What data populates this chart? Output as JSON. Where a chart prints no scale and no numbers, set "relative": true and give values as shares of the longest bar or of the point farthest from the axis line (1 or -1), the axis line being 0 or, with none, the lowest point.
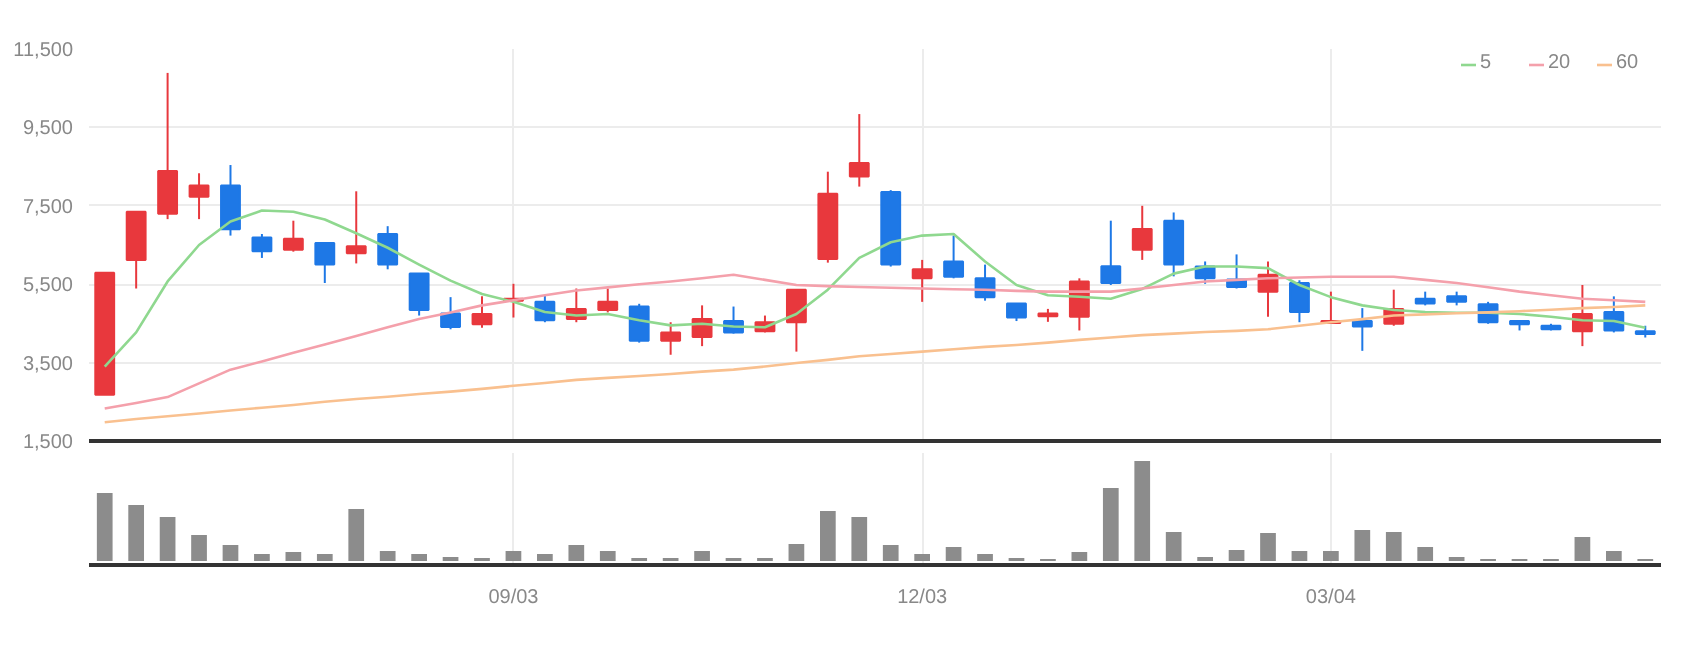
{
  "chart_data": [
    {
      "type": "candlestick",
      "categories": [
        null,
        null,
        null,
        null,
        null,
        null,
        null,
        null,
        null,
        null,
        null,
        null,
        null,
        null,
        null,
        null,
        null,
        null,
        null,
        null,
        null,
        null,
        null,
        null,
        null,
        null,
        null,
        null,
        null,
        null,
        null,
        null,
        null,
        null,
        null,
        null,
        null,
        null,
        null,
        null,
        null,
        null,
        null,
        null,
        null,
        null,
        null,
        null,
        null,
        null
      ],
      "ohlc": [
        [
          2680,
          5800,
          2680,
          5790
        ],
        [
          6120,
          7350,
          5390,
          7350
        ],
        [
          7295,
          10890,
          7160,
          8385
        ],
        [
          7730,
          8330,
          7160,
          8020
        ],
        [
          8020,
          8540,
          6740,
          6900
        ],
        [
          6690,
          6780,
          6170,
          6340
        ],
        [
          6380,
          7120,
          6330,
          6660
        ],
        [
          6550,
          6550,
          5530,
          6000
        ],
        [
          6290,
          7870,
          6030,
          6470
        ],
        [
          6780,
          6980,
          5880,
          6000
        ],
        [
          5770,
          5770,
          4700,
          4840
        ],
        [
          4750,
          5170,
          4350,
          4410
        ],
        [
          4480,
          5190,
          4390,
          4740
        ],
        [
          5080,
          5510,
          4650,
          5130
        ],
        [
          5050,
          5220,
          4530,
          4580
        ],
        [
          4610,
          5390,
          4530,
          4870
        ],
        [
          4840,
          5390,
          4780,
          5050
        ],
        [
          4930,
          5000,
          4010,
          4060
        ],
        [
          4060,
          4530,
          3700,
          4270
        ],
        [
          4150,
          4960,
          3920,
          4610
        ],
        [
          4560,
          4930,
          4240,
          4270
        ],
        [
          4300,
          4700,
          4270,
          4530
        ],
        [
          4530,
          5360,
          3780,
          5360
        ],
        [
          6140,
          8370,
          6050,
          7810
        ],
        [
          8250,
          9840,
          7990,
          8590
        ],
        [
          7850,
          7900,
          5950,
          6000
        ],
        [
          5650,
          6120,
          5050,
          5880
        ],
        [
          6080,
          6740,
          5650,
          5690
        ],
        [
          5650,
          6000,
          5080,
          5170
        ],
        [
          5010,
          5010,
          4560,
          4650
        ],
        [
          4680,
          4870,
          4540,
          4750
        ],
        [
          4670,
          5650,
          4320,
          5570
        ],
        [
          5960,
          7120,
          5480,
          5530
        ],
        [
          6380,
          7500,
          6120,
          6910
        ],
        [
          7120,
          7330,
          5700,
          6000
        ],
        [
          5950,
          6080,
          5510,
          5650
        ],
        [
          5620,
          6260,
          5390,
          5430
        ],
        [
          5310,
          6080,
          4670,
          5740
        ],
        [
          5530,
          5600,
          4530,
          4790
        ],
        [
          4510,
          5310,
          4510,
          4560
        ],
        [
          4560,
          4890,
          3800,
          4420
        ],
        [
          4490,
          5360,
          4440,
          4870
        ],
        [
          5130,
          5310,
          4960,
          5010
        ],
        [
          5190,
          5310,
          4960,
          5050
        ],
        [
          4990,
          5050,
          4490,
          4530
        ],
        [
          4560,
          4560,
          4320,
          4480
        ],
        [
          4440,
          4490,
          4320,
          4350
        ],
        [
          4300,
          5480,
          3920,
          4740
        ],
        [
          4790,
          5190,
          4270,
          4320
        ],
        [
          4300,
          4440,
          4140,
          4230
        ]
      ],
      "colors": [
        "#e8383d",
        "#e8383d",
        "#e8383d",
        "#e8383d",
        "#1e78e6",
        "#1e78e6",
        "#e8383d",
        "#1e78e6",
        "#e8383d",
        "#1e78e6",
        "#1e78e6",
        "#1e78e6",
        "#e8383d",
        "#e8383d",
        "#1e78e6",
        "#e8383d",
        "#e8383d",
        "#1e78e6",
        "#e8383d",
        "#e8383d",
        "#1e78e6",
        "#e8383d",
        "#e8383d",
        "#e8383d",
        "#e8383d",
        "#1e78e6",
        "#e8383d",
        "#1e78e6",
        "#1e78e6",
        "#1e78e6",
        "#e8383d",
        "#e8383d",
        "#1e78e6",
        "#e8383d",
        "#1e78e6",
        "#1e78e6",
        "#1e78e6",
        "#e8383d",
        "#1e78e6",
        "#e8383d",
        "#1e78e6",
        "#e8383d",
        "#1e78e6",
        "#1e78e6",
        "#1e78e6",
        "#1e78e6",
        "#1e78e6",
        "#e8383d",
        "#1e78e6",
        "#1e78e6"
      ],
      "series": [
        {
          "name": "5",
          "type": "line",
          "color": "#8fd88f",
          "values": [
            3400,
            4270,
            5570,
            6500,
            7100,
            7380,
            7350,
            7150,
            6800,
            6430,
            6000,
            5590,
            5250,
            5050,
            4790,
            4700,
            4740,
            4580,
            4450,
            4490,
            4420,
            4400,
            4740,
            5360,
            6170,
            6570,
            6740,
            6780,
            6080,
            5480,
            5220,
            5180,
            5130,
            5380,
            5770,
            5950,
            5950,
            5910,
            5480,
            5170,
            4960,
            4840,
            4790,
            4770,
            4770,
            4740,
            4670,
            4580,
            4560,
            4390
          ]
        },
        {
          "name": "20",
          "type": "line",
          "color": "#f4a0ab",
          "values": [
            2330,
            2470,
            2620,
            2970,
            3320,
            3530,
            3750,
            3960,
            4180,
            4400,
            4610,
            4780,
            4960,
            5090,
            5220,
            5340,
            5420,
            5500,
            5570,
            5650,
            5740,
            5610,
            5480,
            5450,
            5430,
            5410,
            5390,
            5370,
            5360,
            5330,
            5310,
            5310,
            5310,
            5390,
            5480,
            5570,
            5610,
            5650,
            5670,
            5690,
            5690,
            5690,
            5610,
            5530,
            5420,
            5310,
            5220,
            5130,
            5090,
            5050
          ]
        },
        {
          "name": "60",
          "type": "line",
          "color": "#f9c08f",
          "values": [
            1980,
            2060,
            2130,
            2200,
            2280,
            2350,
            2420,
            2500,
            2570,
            2630,
            2700,
            2760,
            2830,
            2910,
            2980,
            3060,
            3110,
            3160,
            3210,
            3270,
            3320,
            3400,
            3490,
            3570,
            3660,
            3720,
            3780,
            3840,
            3900,
            3950,
            4010,
            4080,
            4140,
            4200,
            4240,
            4280,
            4310,
            4350,
            4440,
            4530,
            4610,
            4700,
            4730,
            4760,
            4780,
            4810,
            4850,
            4890,
            4920,
            4960
          ]
        }
      ],
      "ylim": [
        1500,
        11500
      ],
      "yticks": [
        {
          "value": 1500,
          "label": "1,500"
        },
        {
          "value": 3500,
          "label": "3,500"
        },
        {
          "value": 5500,
          "label": "5,500"
        },
        {
          "value": 7500,
          "label": "7,500"
        },
        {
          "value": 9500,
          "label": "9,500"
        },
        {
          "value": 11500,
          "label": "11,500"
        }
      ],
      "tick_labels": "y",
      "grid": true,
      "legend": "top right"
    },
    {
      "type": "bar",
      "relative": true,
      "categories": [
        null,
        null,
        null,
        null,
        null,
        null,
        null,
        null,
        null,
        null,
        null,
        null,
        null,
        "09/03",
        null,
        null,
        null,
        null,
        null,
        null,
        null,
        null,
        null,
        null,
        null,
        null,
        "12/03",
        null,
        null,
        null,
        null,
        null,
        null,
        null,
        null,
        null,
        null,
        null,
        null,
        "03/04",
        null,
        null,
        null,
        null,
        null,
        null,
        null,
        null,
        null,
        null
      ],
      "values": [
        0.68,
        0.56,
        0.44,
        0.26,
        0.16,
        0.07,
        0.09,
        0.07,
        0.52,
        0.1,
        0.07,
        0.04,
        0.03,
        0.1,
        0.07,
        0.16,
        0.1,
        0.03,
        0.03,
        0.1,
        0.03,
        0.03,
        0.17,
        0.5,
        0.44,
        0.16,
        0.07,
        0.14,
        0.07,
        0.03,
        0.02,
        0.09,
        0.73,
        1,
        0.29,
        0.04,
        0.11,
        0.28,
        0.1,
        0.1,
        0.31,
        0.29,
        0.14,
        0.04,
        0.02,
        0.02,
        0.02,
        0.24,
        0.1,
        0.02
      ],
      "color": "#8c8c8c",
      "tick_labels": "x",
      "grid": "x"
    }
  ]
}
